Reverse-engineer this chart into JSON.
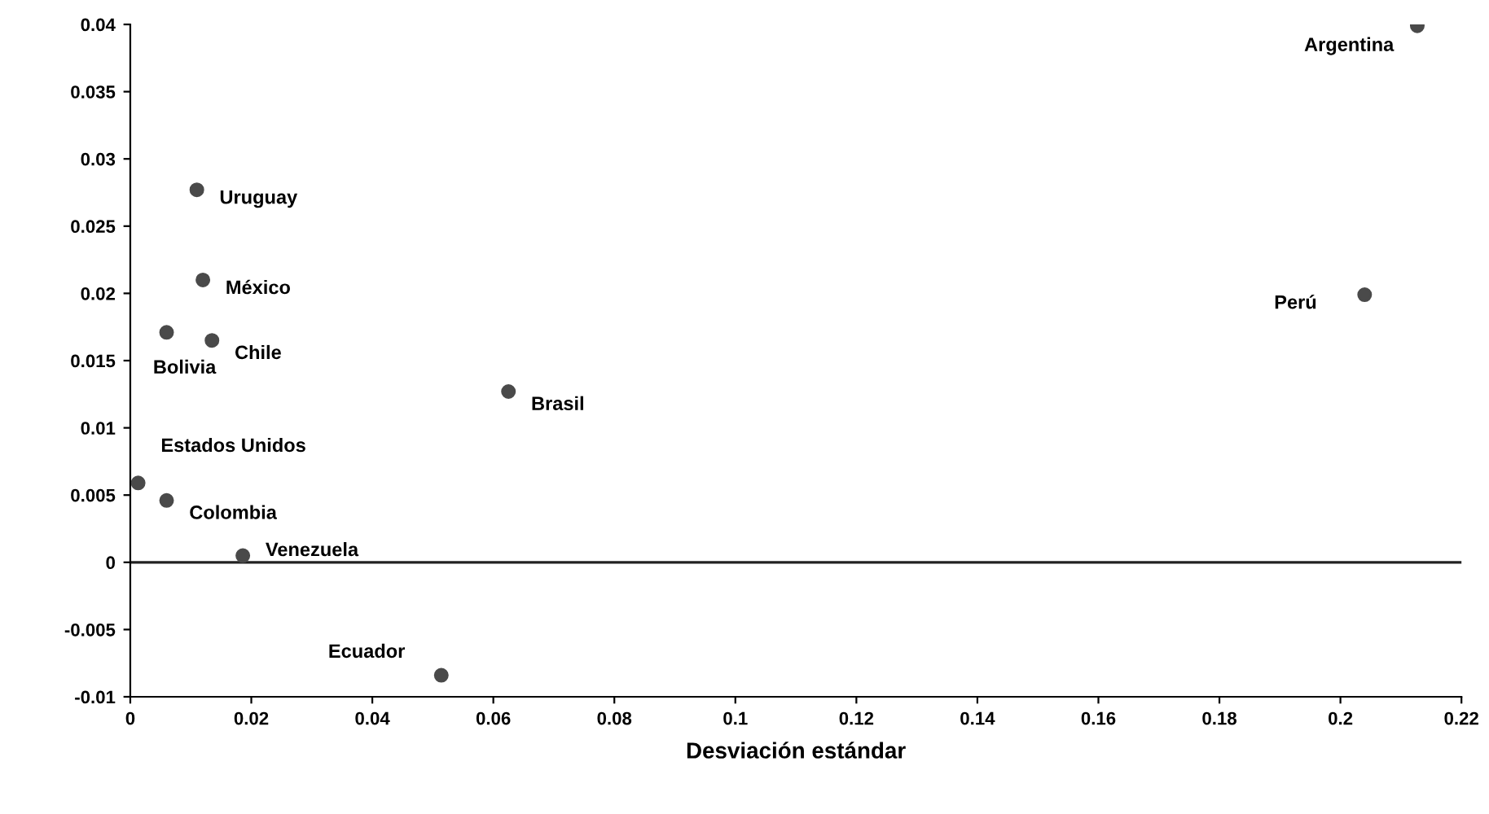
{
  "chart_data": {
    "type": "scatter",
    "xlabel": "Desviación estándar",
    "x": [
      0.2127,
      0.204,
      0.011,
      0.012,
      0.006,
      0.0135,
      0.0625,
      0.0013,
      0.006,
      0.0186,
      0.0514
    ],
    "series": [
      {
        "color": "#4a4a4a",
        "values": [
          0.0399,
          0.0199,
          0.0277,
          0.021,
          0.0171,
          0.0165,
          0.0127,
          0.0059,
          0.0046,
          0.0005,
          -0.0084
        ]
      }
    ],
    "annotations": [
      {
        "text": "Argentina",
        "x": 0.2127,
        "y": 0.0399
      },
      {
        "text": "Perú",
        "x": 0.204,
        "y": 0.0199
      },
      {
        "text": "Uruguay",
        "x": 0.011,
        "y": 0.0277
      },
      {
        "text": "México",
        "x": 0.012,
        "y": 0.021
      },
      {
        "text": "Bolivia",
        "x": 0.006,
        "y": 0.0171
      },
      {
        "text": "Chile",
        "x": 0.0135,
        "y": 0.0165
      },
      {
        "text": "Brasil",
        "x": 0.0625,
        "y": 0.0127
      },
      {
        "text": "Estados Unidos",
        "x": 0.0013,
        "y": 0.0059
      },
      {
        "text": "Colombia",
        "x": 0.006,
        "y": 0.0046
      },
      {
        "text": "Venezuela",
        "x": 0.0186,
        "y": 0.0005
      },
      {
        "text": "Ecuador",
        "x": 0.0514,
        "y": -0.0084
      }
    ],
    "xlim": [
      0,
      0.22
    ],
    "xticks": [
      0,
      0.02,
      0.04,
      0.06,
      0.08,
      0.1,
      0.12,
      0.14,
      0.16,
      0.18,
      0.2,
      0.22
    ],
    "ylim": [
      -0.01,
      0.04
    ],
    "yticks": [
      -0.01,
      -0.005,
      0,
      0.005,
      0.01,
      0.015,
      0.02,
      0.025,
      0.03,
      0.035,
      0.04
    ],
    "ref_lines": [
      {
        "axis": "y",
        "value": 0,
        "color": "#222222"
      }
    ],
    "marker": "circle",
    "grid": false,
    "legend": false
  }
}
